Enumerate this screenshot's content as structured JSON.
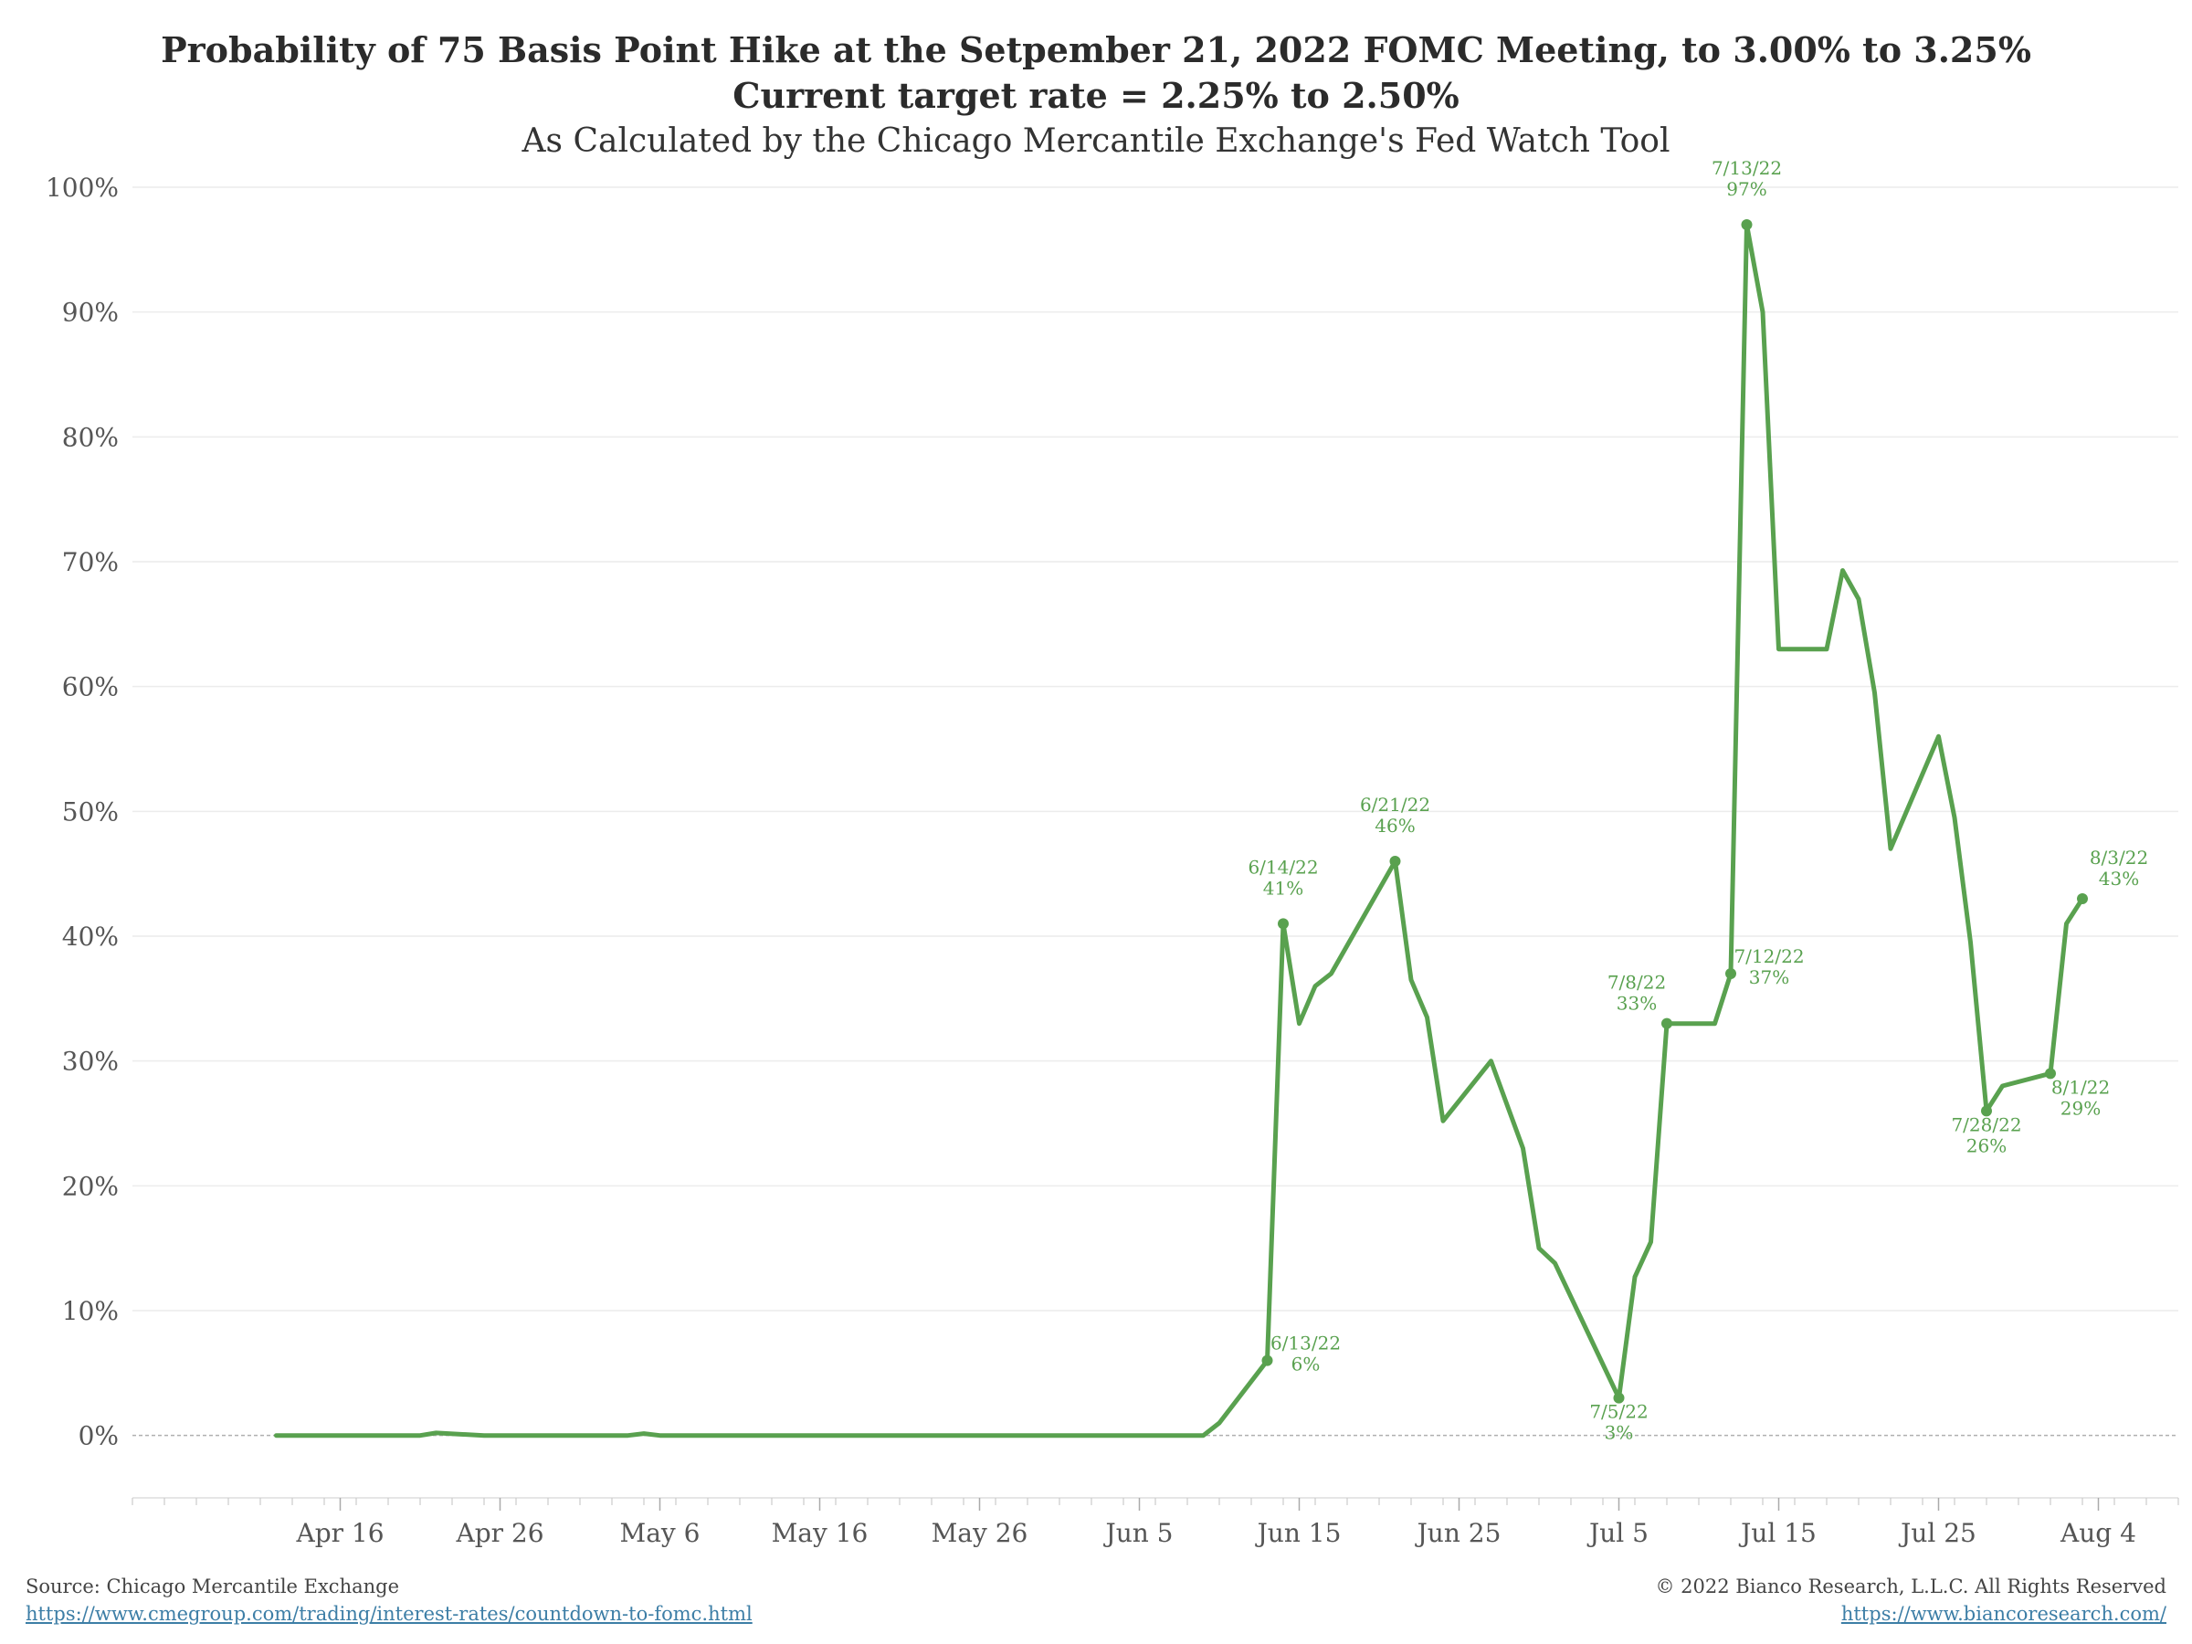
{
  "titles": {
    "main": "Probability of 75 Basis Point Hike at the Setpember 21, 2022 FOMC Meeting, to 3.00% to 3.25%",
    "sub": "Current target rate = 2.25% to 2.50%",
    "sub2": "As Calculated by the Chicago Mercantile Exchange's Fed Watch Tool"
  },
  "footer": {
    "source": "Source: Chicago Mercantile Exchange",
    "source_url": "https://www.cmegroup.com/trading/interest-rates/countdown-to-fomc.html",
    "copyright": "© 2022 Bianco Research, L.L.C. All Rights Reserved",
    "site_url": "https://www.biancoresearch.com/"
  },
  "colors": {
    "series": "#59a14f",
    "gridline": "#ececec",
    "zero_line": "#b0b0b0",
    "axis_text": "#555555"
  },
  "chart_data": {
    "type": "line",
    "title": "Probability of 75 Basis Point Hike at the Setpember 21, 2022 FOMC Meeting, to 3.00% to 3.25%",
    "xlabel": "",
    "ylabel": "",
    "ylim": [
      -5,
      100
    ],
    "xlim": [
      "2022-04-03",
      "2022-08-09"
    ],
    "grid": true,
    "legend": "none",
    "y_ticks": [
      0,
      10,
      20,
      30,
      40,
      50,
      60,
      70,
      80,
      90,
      100
    ],
    "y_tick_labels": [
      "0%",
      "10%",
      "20%",
      "30%",
      "40%",
      "50%",
      "60%",
      "70%",
      "80%",
      "90%",
      "100%"
    ],
    "x_ticks": [
      "2022-04-16",
      "2022-04-26",
      "2022-05-06",
      "2022-05-16",
      "2022-05-26",
      "2022-06-05",
      "2022-06-15",
      "2022-06-25",
      "2022-07-05",
      "2022-07-15",
      "2022-07-25",
      "2022-08-04"
    ],
    "x_tick_labels": [
      "Apr 16",
      "Apr 26",
      "May 6",
      "May 16",
      "May 26",
      "Jun 5",
      "Jun 15",
      "Jun 25",
      "Jul 5",
      "Jul 15",
      "Jul 25",
      "Aug 4"
    ],
    "series": [
      {
        "points": [
          [
            "2022-04-12",
            0
          ],
          [
            "2022-04-21",
            0
          ],
          [
            "2022-04-22",
            0.2
          ],
          [
            "2022-04-25",
            0
          ],
          [
            "2022-04-29",
            0
          ],
          [
            "2022-05-02",
            0
          ],
          [
            "2022-05-04",
            0
          ],
          [
            "2022-05-05",
            0.15
          ],
          [
            "2022-05-06",
            0
          ],
          [
            "2022-05-13",
            0
          ],
          [
            "2022-05-20",
            0
          ],
          [
            "2022-05-27",
            0
          ],
          [
            "2022-06-03",
            0
          ],
          [
            "2022-06-08",
            0
          ],
          [
            "2022-06-09",
            0
          ],
          [
            "2022-06-10",
            1
          ],
          [
            "2022-06-13",
            6
          ],
          [
            "2022-06-14",
            41
          ],
          [
            "2022-06-15",
            33
          ],
          [
            "2022-06-16",
            36
          ],
          [
            "2022-06-17",
            37
          ],
          [
            "2022-06-21",
            46
          ],
          [
            "2022-06-22",
            36.5
          ],
          [
            "2022-06-23",
            33.5
          ],
          [
            "2022-06-24",
            25.2
          ],
          [
            "2022-06-27",
            30
          ],
          [
            "2022-06-29",
            23
          ],
          [
            "2022-06-30",
            15
          ],
          [
            "2022-07-01",
            13.8
          ],
          [
            "2022-07-05",
            3
          ],
          [
            "2022-07-06",
            12.7
          ],
          [
            "2022-07-07",
            15.5
          ],
          [
            "2022-07-08",
            33
          ],
          [
            "2022-07-11",
            33
          ],
          [
            "2022-07-12",
            37
          ],
          [
            "2022-07-13",
            97
          ],
          [
            "2022-07-14",
            90
          ],
          [
            "2022-07-15",
            63
          ],
          [
            "2022-07-18",
            63
          ],
          [
            "2022-07-19",
            69.3
          ],
          [
            "2022-07-20",
            67
          ],
          [
            "2022-07-21",
            59.5
          ],
          [
            "2022-07-22",
            47
          ],
          [
            "2022-07-25",
            56
          ],
          [
            "2022-07-26",
            49.5
          ],
          [
            "2022-07-27",
            39.5
          ],
          [
            "2022-07-28",
            26
          ],
          [
            "2022-07-29",
            28
          ],
          [
            "2022-08-01",
            29
          ],
          [
            "2022-08-02",
            41
          ],
          [
            "2022-08-03",
            43
          ]
        ]
      }
    ],
    "annotations": [
      {
        "date": "2022-06-13",
        "value": 6,
        "label_date": "6/13/22",
        "label_value": "6%",
        "pos": "right"
      },
      {
        "date": "2022-06-14",
        "value": 41,
        "label_date": "6/14/22",
        "label_value": "41%",
        "pos": "above"
      },
      {
        "date": "2022-06-21",
        "value": 46,
        "label_date": "6/21/22",
        "label_value": "46%",
        "pos": "above"
      },
      {
        "date": "2022-07-05",
        "value": 3,
        "label_date": "7/5/22",
        "label_value": "3%",
        "pos": "below"
      },
      {
        "date": "2022-07-08",
        "value": 33,
        "label_date": "7/8/22",
        "label_value": "33%",
        "pos": "above-left"
      },
      {
        "date": "2022-07-12",
        "value": 37,
        "label_date": "7/12/22",
        "label_value": "37%",
        "pos": "right"
      },
      {
        "date": "2022-07-13",
        "value": 97,
        "label_date": "7/13/22",
        "label_value": "97%",
        "pos": "above"
      },
      {
        "date": "2022-07-28",
        "value": 26,
        "label_date": "7/28/22",
        "label_value": "26%",
        "pos": "below"
      },
      {
        "date": "2022-08-01",
        "value": 29,
        "label_date": "8/1/22",
        "label_value": "29%",
        "pos": "below-right"
      },
      {
        "date": "2022-08-03",
        "value": 43,
        "label_date": "8/3/22",
        "label_value": "43%",
        "pos": "above-right"
      }
    ]
  }
}
